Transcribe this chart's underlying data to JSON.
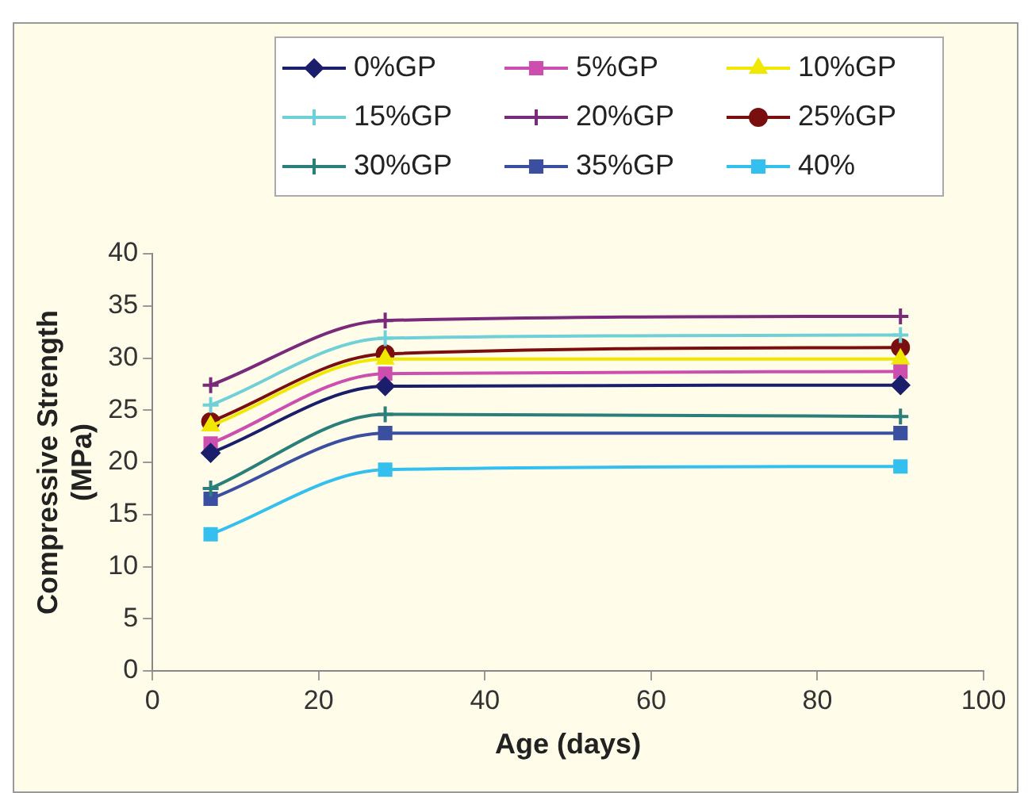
{
  "chart_data": {
    "type": "line",
    "xlabel": "Age (days)",
    "ylabel": "Compressive Strength\n(MPa)",
    "xlim": [
      0,
      100
    ],
    "xticks": [
      0,
      20,
      40,
      60,
      80,
      100
    ],
    "ylim": [
      0,
      40
    ],
    "yticks": [
      0,
      5,
      10,
      15,
      20,
      25,
      30,
      35,
      40
    ],
    "grid": false,
    "legend": "top",
    "x": [
      7,
      28,
      90
    ],
    "series": [
      {
        "name": "0%GP",
        "color": "#1b1f6b",
        "marker": "diamond",
        "values": [
          20.9,
          27.3,
          27.4
        ]
      },
      {
        "name": "5%GP",
        "color": "#cc4fb0",
        "marker": "square",
        "values": [
          21.8,
          28.5,
          28.7
        ]
      },
      {
        "name": "10%GP",
        "color": "#f0e800",
        "marker": "triangle",
        "values": [
          23.5,
          29.9,
          29.9
        ]
      },
      {
        "name": "15%GP",
        "color": "#6fd0d8",
        "marker": "cross",
        "values": [
          25.5,
          31.9,
          32.2
        ]
      },
      {
        "name": "20%GP",
        "color": "#7a2a7a",
        "marker": "cross",
        "values": [
          27.4,
          33.6,
          34.0
        ]
      },
      {
        "name": "25%GP",
        "color": "#7a0f0f",
        "marker": "circle",
        "values": [
          23.9,
          30.4,
          31.0
        ]
      },
      {
        "name": "30%GP",
        "color": "#2a7f7a",
        "marker": "cross",
        "values": [
          17.5,
          24.6,
          24.4
        ]
      },
      {
        "name": "35%GP",
        "color": "#3a4fa0",
        "marker": "square",
        "values": [
          16.5,
          22.8,
          22.8
        ]
      },
      {
        "name": "40%",
        "color": "#33c0ee",
        "marker": "square",
        "values": [
          13.1,
          19.3,
          19.6
        ]
      }
    ]
  }
}
